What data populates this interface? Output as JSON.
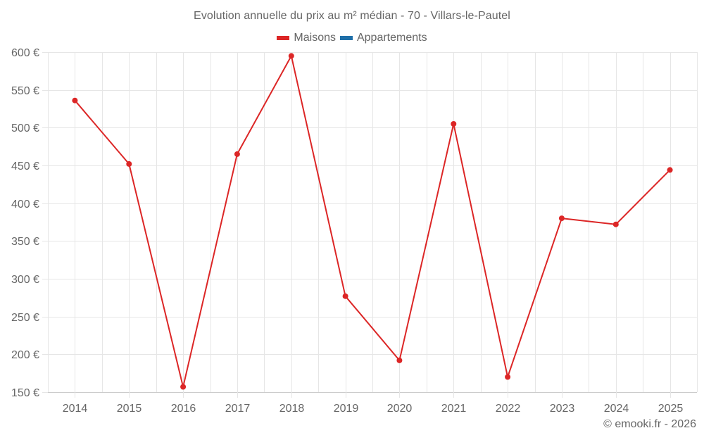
{
  "title": "Evolution annuelle du prix au m² médian - 70 - Villars-le-Pautel",
  "legend": [
    {
      "label": "Maisons",
      "color": "#dc2626"
    },
    {
      "label": "Appartements",
      "color": "#1f6fa8"
    }
  ],
  "credits": "© emooki.fr - 2026",
  "colors": {
    "line": "#dc2626",
    "grid": "#e6e6e6",
    "axis": "#cccccc",
    "text": "#666666"
  },
  "chart_data": {
    "type": "line",
    "title": "Evolution annuelle du prix au m² médian - 70 - Villars-le-Pautel",
    "xlabel": "",
    "ylabel": "",
    "categories": [
      "2014",
      "2015",
      "2016",
      "2017",
      "2018",
      "2019",
      "2020",
      "2021",
      "2022",
      "2023",
      "2024",
      "2025"
    ],
    "series": [
      {
        "name": "Maisons",
        "color": "#dc2626",
        "values": [
          536,
          452,
          157,
          465,
          595,
          277,
          192,
          505,
          170,
          380,
          372,
          444
        ]
      },
      {
        "name": "Appartements",
        "color": "#1f6fa8",
        "values": []
      }
    ],
    "ylim": [
      150,
      600
    ],
    "yticks": [
      150,
      200,
      250,
      300,
      350,
      400,
      450,
      500,
      550,
      600
    ],
    "ytick_labels": [
      "150 €",
      "200 €",
      "250 €",
      "300 €",
      "350 €",
      "400 €",
      "450 €",
      "500 €",
      "550 €",
      "600 €"
    ],
    "grid": true,
    "legend_position": "top"
  }
}
